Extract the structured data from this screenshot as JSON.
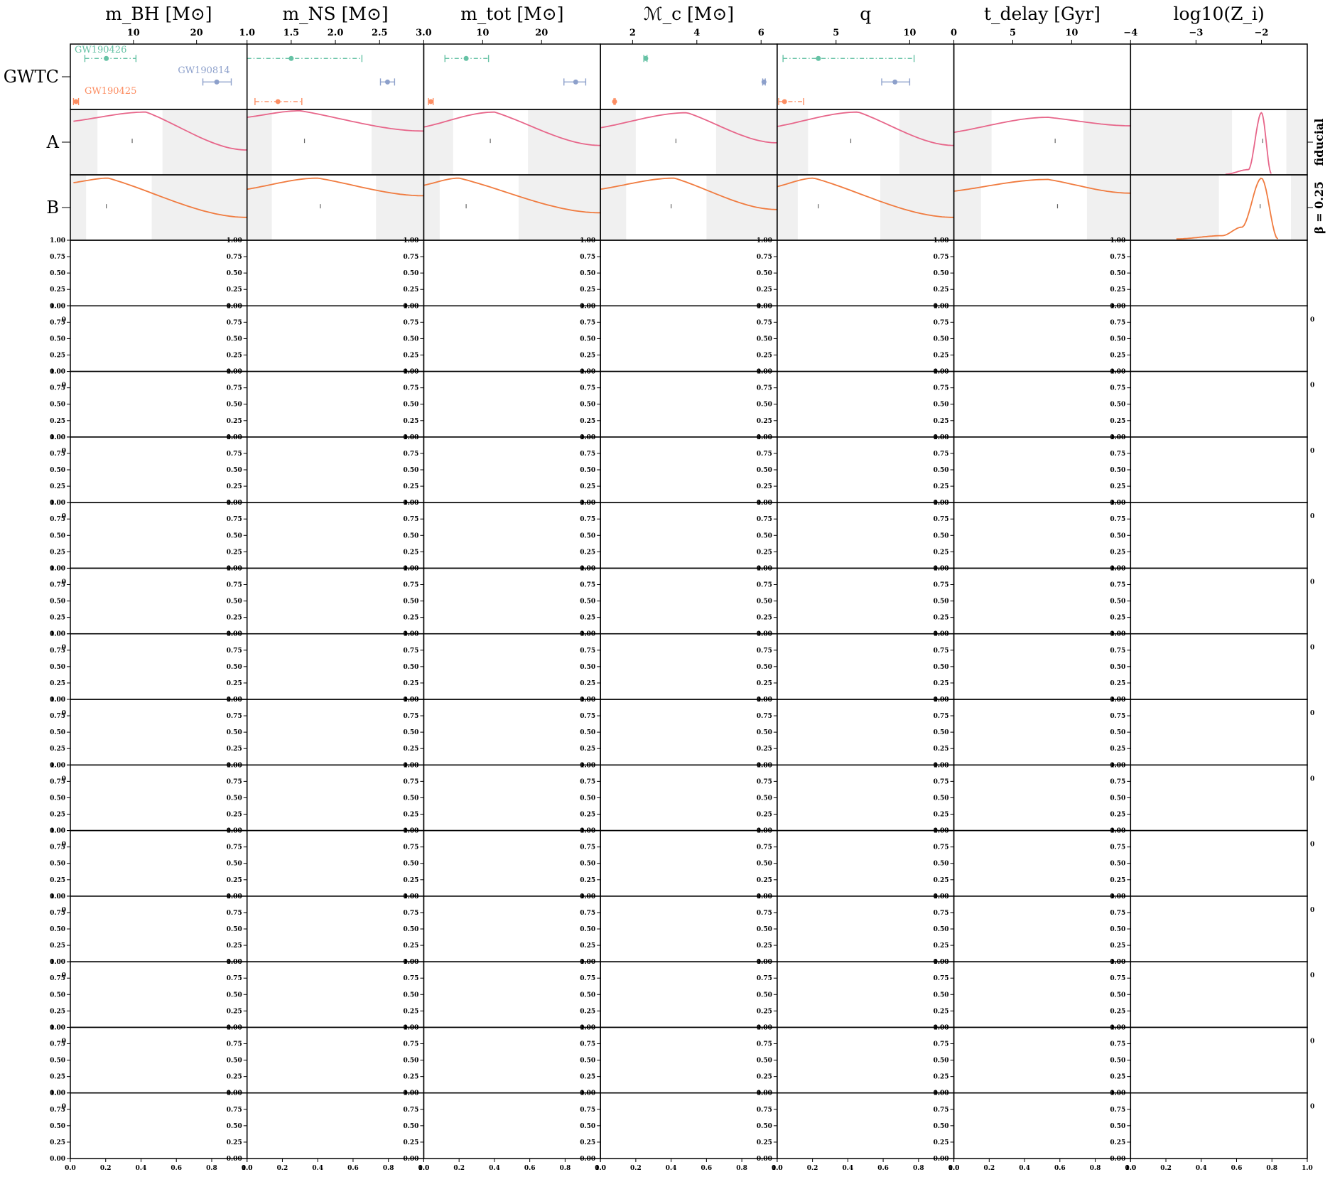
{
  "chart_data": {
    "type": "line",
    "columns": [
      {
        "key": "mBH",
        "label": "m_BH [M⊙]",
        "range": [
          0,
          28
        ],
        "ticks": [
          10,
          20
        ],
        "tick_labels": [
          "10",
          "20"
        ]
      },
      {
        "key": "mNS",
        "label": "m_NS [M⊙]",
        "range": [
          1.0,
          3.0
        ],
        "ticks": [
          1.0,
          1.5,
          2.0,
          2.5,
          3.0
        ],
        "tick_labels": [
          "1.0",
          "1.5",
          "2.0",
          "2.5",
          "3.0"
        ]
      },
      {
        "key": "mtot",
        "label": "m_tot [M⊙]",
        "range": [
          0,
          30
        ],
        "ticks": [
          10,
          20
        ],
        "tick_labels": [
          "10",
          "20"
        ]
      },
      {
        "key": "Mc",
        "label": "ℳ_c [M⊙]",
        "range": [
          1,
          6.5
        ],
        "ticks": [
          2,
          4,
          6
        ],
        "tick_labels": [
          "2",
          "4",
          "6"
        ]
      },
      {
        "key": "q",
        "label": "q",
        "range": [
          1,
          13
        ],
        "ticks": [
          5,
          10
        ],
        "tick_labels": [
          "5",
          "10"
        ]
      },
      {
        "key": "tdelay",
        "label": "t_delay [Gyr]",
        "range": [
          0,
          15
        ],
        "ticks": [
          0,
          5,
          10
        ],
        "tick_labels": [
          "0",
          "5",
          "10"
        ]
      },
      {
        "key": "logZ",
        "label": "log10(Z_i)",
        "range": [
          -4,
          -1.3
        ],
        "ticks": [
          -4,
          -3,
          -2
        ],
        "tick_labels": [
          "−4",
          "−3",
          "−2"
        ]
      }
    ],
    "rows": [
      "GWTC",
      "A",
      "B"
    ],
    "side_labels": [
      "fiducial",
      "β = 0.25"
    ],
    "events": [
      {
        "name": "GW190426",
        "color": "#66c2a5",
        "style": "dashdot",
        "mBH": [
          5.7,
          2.3,
          10.4
        ],
        "mNS": [
          1.5,
          1.0,
          2.3
        ],
        "mtot": [
          7.2,
          3.6,
          11.0
        ],
        "Mc": [
          2.41,
          2.35,
          2.45
        ],
        "q": [
          3.8,
          1.4,
          10.3
        ]
      },
      {
        "name": "GW190814",
        "color": "#8da0cb",
        "style": "solid",
        "mBH": [
          23.2,
          21.0,
          25.5
        ],
        "mNS": [
          2.59,
          2.51,
          2.67
        ],
        "mtot": [
          25.8,
          23.8,
          27.5
        ],
        "Mc": [
          6.09,
          6.05,
          6.13
        ],
        "q": [
          9.0,
          8.1,
          10.0
        ]
      },
      {
        "name": "GW190425",
        "color": "#fc8d62",
        "style": "dashdot",
        "mBH": [
          0.9,
          0.5,
          1.3
        ],
        "mNS": [
          1.35,
          1.09,
          1.62
        ],
        "mtot": [
          1.2,
          0.8,
          1.6
        ],
        "Mc": [
          1.44,
          1.42,
          1.46
        ],
        "q": [
          1.5,
          1.1,
          2.8
        ]
      }
    ],
    "models": [
      {
        "row": "A",
        "color": "#e7668a",
        "curves": {
          "mBH": [
            [
              0.5,
              0.18
            ],
            [
              12,
              0.04
            ],
            [
              28,
              0.62
            ]
          ],
          "mNS": [
            [
              1.0,
              0.12
            ],
            [
              1.6,
              0.02
            ],
            [
              3.0,
              0.33
            ]
          ],
          "mtot": [
            [
              0,
              0.27
            ],
            [
              12,
              0.04
            ],
            [
              30,
              0.55
            ]
          ],
          "Mc": [
            [
              1,
              0.28
            ],
            [
              3.7,
              0.05
            ],
            [
              6.5,
              0.51
            ]
          ],
          "q": [
            [
              1,
              0.26
            ],
            [
              6.5,
              0.04
            ],
            [
              13,
              0.55
            ]
          ],
          "tdelay": [
            [
              0,
              0.35
            ],
            [
              8,
              0.12
            ],
            [
              15,
              0.25
            ]
          ],
          "logZ": [
            [
              -2.55,
              0.99
            ],
            [
              -2.2,
              0.92
            ],
            [
              -2.0,
              0.05
            ],
            [
              -1.85,
              0.98
            ]
          ]
        },
        "shade": {
          "mBH": [
            4.3,
            14.6
          ],
          "mNS": [
            1.28,
            2.41
          ],
          "mtot": [
            5.0,
            17.7
          ],
          "Mc": [
            2.1,
            4.6
          ],
          "q": [
            3.1,
            9.3
          ],
          "tdelay": [
            3.2,
            11.0
          ],
          "logZ": [
            -2.45,
            -1.62
          ]
        },
        "median": {
          "mBH": 9.8,
          "mNS": 1.65,
          "mtot": 11.3,
          "Mc": 3.35,
          "q": 6.0,
          "tdelay": 8.6,
          "logZ": -1.98
        }
      },
      {
        "row": "B",
        "color": "#f07b3f",
        "curves": {
          "mBH": [
            [
              0.5,
              0.12
            ],
            [
              6,
              0.05
            ],
            [
              28,
              0.65
            ]
          ],
          "mNS": [
            [
              1.0,
              0.22
            ],
            [
              1.8,
              0.05
            ],
            [
              3.0,
              0.32
            ]
          ],
          "mtot": [
            [
              0,
              0.16
            ],
            [
              6,
              0.05
            ],
            [
              30,
              0.58
            ]
          ],
          "Mc": [
            [
              1,
              0.22
            ],
            [
              3.3,
              0.05
            ],
            [
              6.5,
              0.53
            ]
          ],
          "q": [
            [
              1,
              0.18
            ],
            [
              3.5,
              0.05
            ],
            [
              13,
              0.65
            ]
          ],
          "tdelay": [
            [
              0,
              0.25
            ],
            [
              8,
              0.07
            ],
            [
              15,
              0.28
            ]
          ],
          "logZ": [
            [
              -3.3,
              0.98
            ],
            [
              -2.6,
              0.93
            ],
            [
              -2.3,
              0.8
            ],
            [
              -2.0,
              0.05
            ],
            [
              -1.75,
              0.98
            ]
          ]
        },
        "shade": {
          "mBH": [
            2.5,
            12.9
          ],
          "mNS": [
            1.28,
            2.46
          ],
          "mtot": [
            2.7,
            16.1
          ],
          "Mc": [
            1.8,
            4.3
          ],
          "q": [
            2.4,
            8.0
          ],
          "tdelay": [
            2.3,
            11.3
          ],
          "logZ": [
            -2.65,
            -1.55
          ]
        },
        "median": {
          "mBH": 5.7,
          "mNS": 1.83,
          "mtot": 7.2,
          "Mc": 3.2,
          "q": 3.8,
          "tdelay": 8.8,
          "logZ": -2.02
        }
      }
    ],
    "empty_grid": {
      "rows": 14,
      "ytick_labels": [
        "1.00",
        "0.75",
        "0.50",
        "0.25",
        "0.00"
      ],
      "xtick_labels": [
        "0.0",
        "0.2",
        "0.4",
        "0.6",
        "0.8",
        "1.0"
      ],
      "ylim": [
        0,
        1
      ],
      "xlim": [
        0,
        1
      ]
    }
  }
}
